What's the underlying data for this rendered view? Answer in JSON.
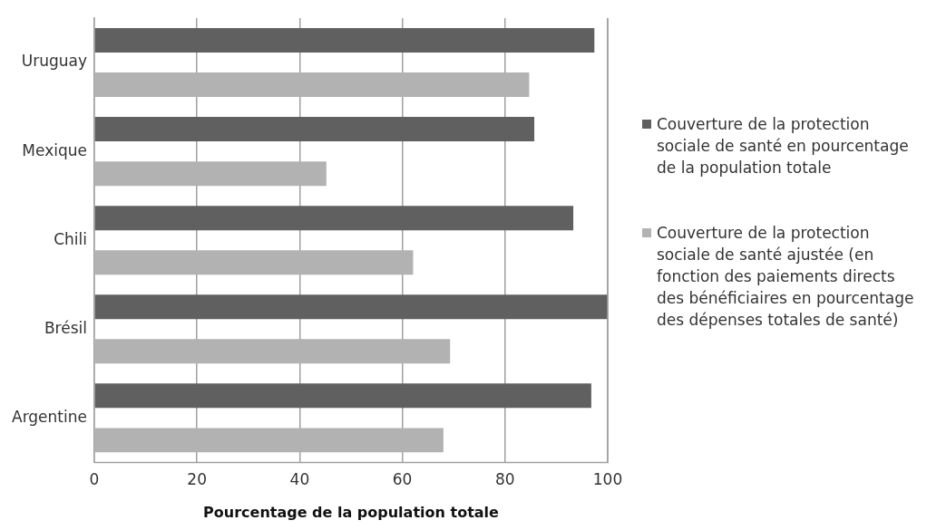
{
  "chart_data": {
    "type": "bar",
    "orientation": "horizontal",
    "xlabel": "Pourcentage de la population totale",
    "categories": [
      "Uruguay",
      "Mexique",
      "Chili",
      "Brésil",
      "Argentine"
    ],
    "series": [
      {
        "name": "Couverture de la protection sociale de santé en pourcentage de la population totale",
        "color": "#606060",
        "values": [
          97.4,
          85.7,
          93.3,
          100,
          96.8
        ]
      },
      {
        "name": "Couverture de la protection sociale de santé ajustée (en fonction des paiements directs des bénéficiaires en pourcentage des dépenses totales de santé)",
        "color": "#b2b2b2",
        "values": [
          84.7,
          45.2,
          62.1,
          69.3,
          68.0
        ]
      }
    ],
    "xlim": [
      0,
      100
    ],
    "xticks": [
      0,
      20,
      40,
      60,
      80,
      100
    ],
    "grid": "x",
    "legend": "right"
  }
}
